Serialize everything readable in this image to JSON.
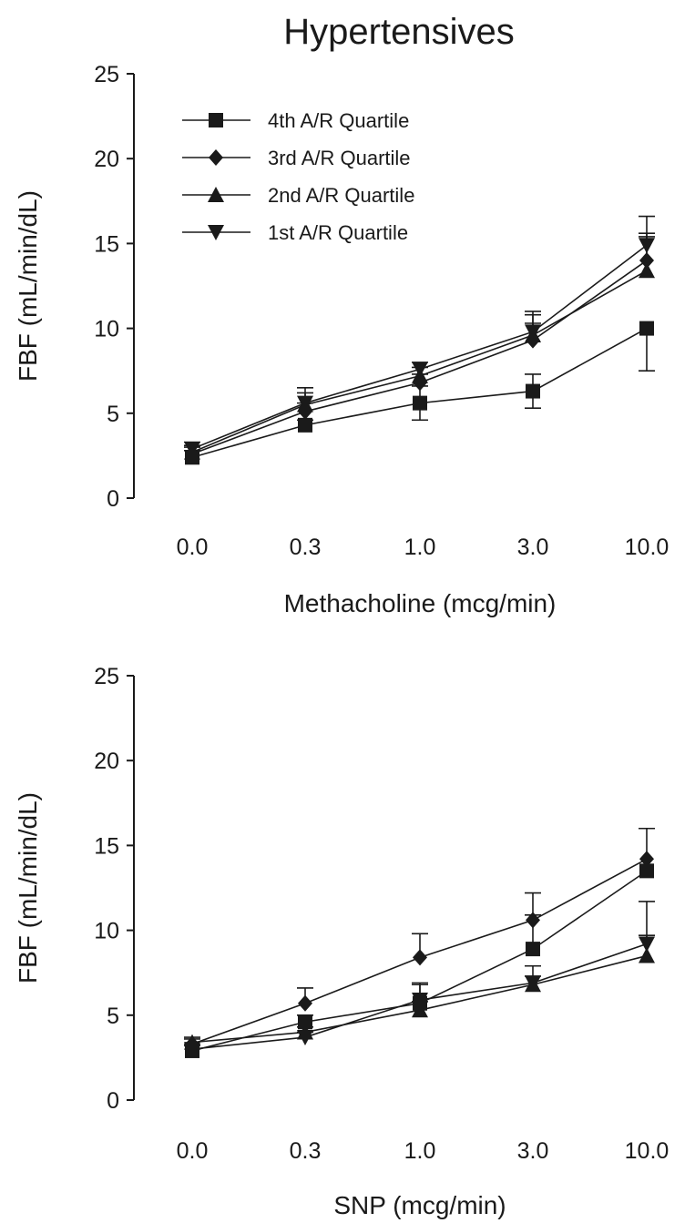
{
  "figure": {
    "title": "Hypertensives"
  },
  "chart_data": [
    {
      "type": "line",
      "title": "Hypertensives",
      "xlabel": "Methacholine (mcg/min)",
      "ylabel": "FBF (mL/min/dL)",
      "categories": [
        "0.0",
        "0.3",
        "1.0",
        "3.0",
        "10.0"
      ],
      "ylim": [
        0,
        25
      ],
      "yticks": [
        "0",
        "5",
        "10",
        "15",
        "20",
        "25"
      ],
      "legend_position": "top-left",
      "series": [
        {
          "name": "4th A/R Quartile",
          "marker": "square",
          "values": [
            2.4,
            4.3,
            5.6,
            6.3,
            10.0
          ],
          "err_upper": [
            0.4,
            0.3,
            1.0,
            1.0,
            0.0
          ],
          "err_lower": [
            0.0,
            0.0,
            1.0,
            1.0,
            2.5
          ]
        },
        {
          "name": "3rd A/R Quartile",
          "marker": "diamond",
          "values": [
            2.6,
            5.1,
            6.8,
            9.3,
            14.0
          ],
          "err_upper": [
            0.4,
            0.5,
            0.5,
            1.0,
            1.6
          ],
          "err_lower": [
            0,
            0,
            0,
            0,
            0
          ]
        },
        {
          "name": "2nd A/R Quartile",
          "marker": "triangle-up",
          "values": [
            2.7,
            5.5,
            7.2,
            9.6,
            13.4
          ],
          "err_upper": [
            0.4,
            0.7,
            0.5,
            1.2,
            2.0
          ],
          "err_lower": [
            0,
            0,
            0,
            0,
            0
          ]
        },
        {
          "name": "1st A/R Quartile",
          "marker": "triangle-down",
          "values": [
            2.9,
            5.6,
            7.6,
            9.8,
            14.9
          ],
          "err_upper": [
            0.4,
            0.9,
            0.4,
            1.2,
            1.7
          ],
          "err_lower": [
            0,
            0,
            0,
            0,
            0
          ]
        }
      ]
    },
    {
      "type": "line",
      "title": "",
      "xlabel": "SNP (mcg/min)",
      "ylabel": "FBF (mL/min/dL)",
      "categories": [
        "0.0",
        "0.3",
        "1.0",
        "3.0",
        "10.0"
      ],
      "ylim": [
        0,
        25
      ],
      "yticks": [
        "0",
        "5",
        "10",
        "15",
        "20",
        "25"
      ],
      "series": [
        {
          "name": "4th A/R Quartile",
          "marker": "square",
          "values": [
            2.9,
            4.6,
            5.7,
            8.9,
            13.5
          ],
          "err_upper": [
            0.3,
            0.4,
            1.1,
            2.0,
            0.0
          ],
          "err_lower": [
            0,
            0,
            0,
            0,
            0
          ]
        },
        {
          "name": "3rd A/R Quartile",
          "marker": "diamond",
          "values": [
            3.3,
            5.7,
            8.4,
            10.6,
            14.2
          ],
          "err_upper": [
            0.3,
            0.9,
            1.4,
            1.6,
            1.8
          ],
          "err_lower": [
            0,
            0,
            0,
            0,
            0
          ]
        },
        {
          "name": "2nd A/R Quartile",
          "marker": "triangle-up",
          "values": [
            3.4,
            4.0,
            5.3,
            6.8,
            8.5
          ],
          "err_upper": [
            0.3,
            0.3,
            0.5,
            0.5,
            1.2
          ],
          "err_lower": [
            0,
            0,
            0,
            0,
            0
          ]
        },
        {
          "name": "1st A/R Quartile",
          "marker": "triangle-down",
          "values": [
            3.0,
            3.7,
            5.9,
            6.9,
            9.2
          ],
          "err_upper": [
            0.3,
            0.3,
            1.0,
            1.0,
            2.5
          ],
          "err_lower": [
            0,
            0,
            0,
            0,
            0
          ]
        }
      ]
    }
  ]
}
